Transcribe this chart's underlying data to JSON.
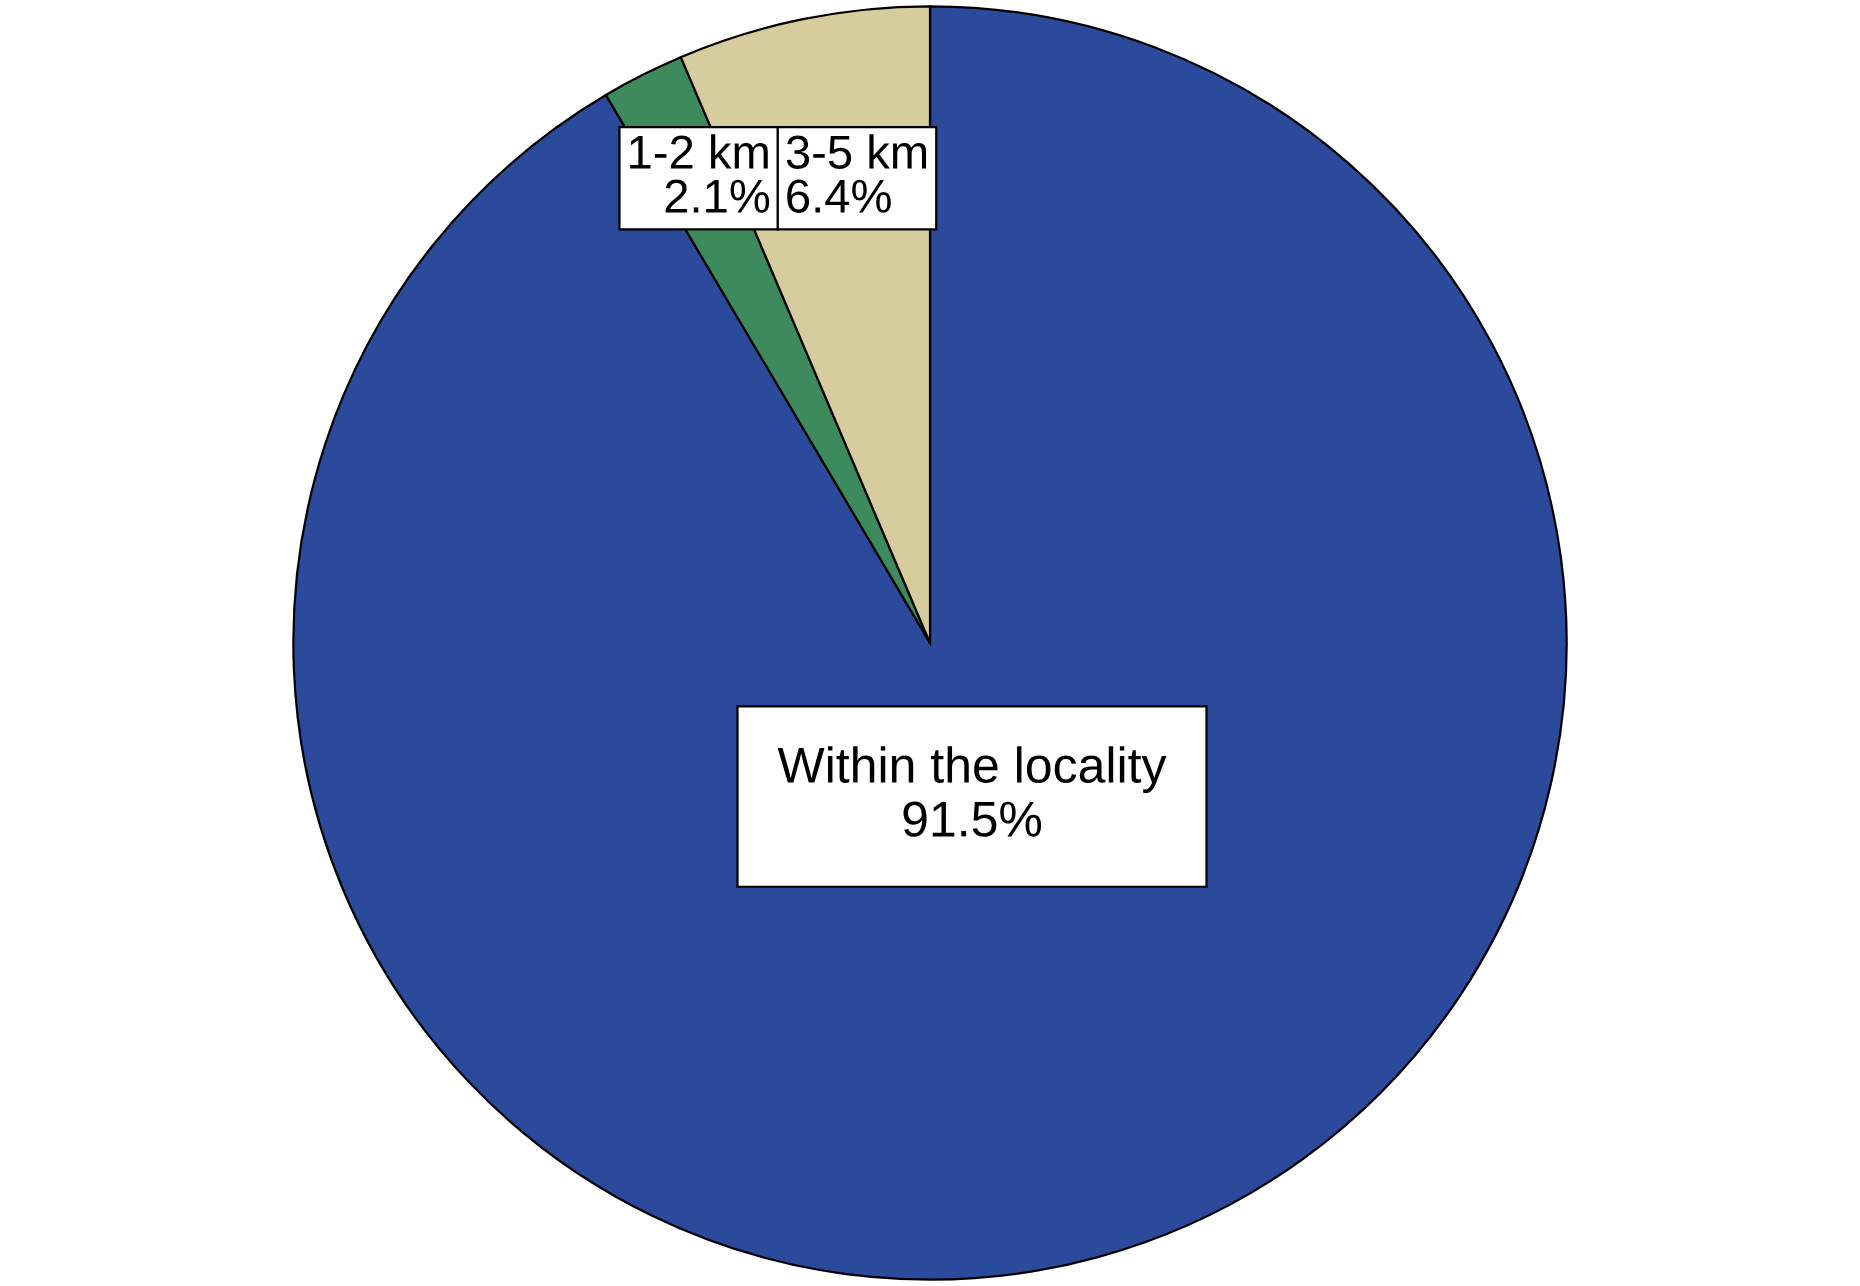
{
  "chart_data": {
    "type": "pie",
    "categories": [
      "Within the locality",
      "1-2 km",
      "3-5 km"
    ],
    "values": [
      91.5,
      2.1,
      6.4
    ],
    "value_labels": [
      "91.5%",
      "2.1%",
      "6.4%"
    ],
    "colors": [
      "#2b4a9c",
      "#3d8a5c",
      "#d6cc9e"
    ]
  }
}
